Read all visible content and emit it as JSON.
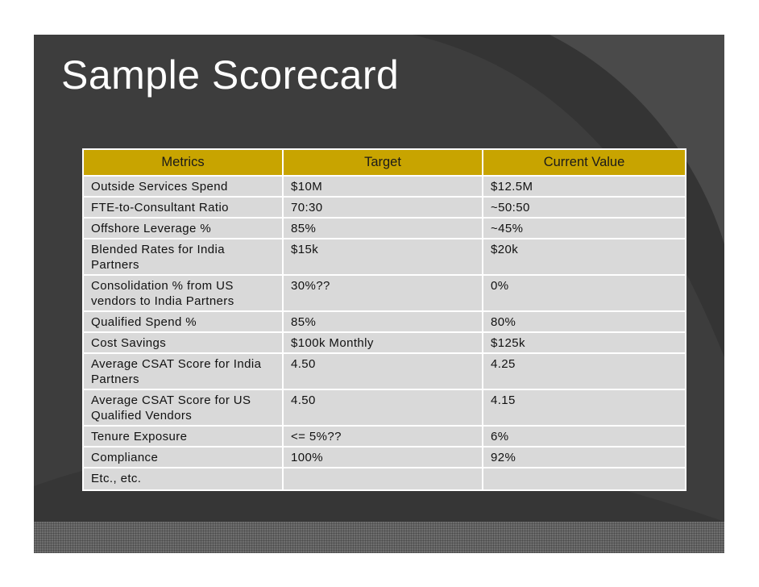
{
  "slide": {
    "title": "Sample Scorecard"
  },
  "table": {
    "headers": [
      "Metrics",
      "Target",
      "Current Value"
    ],
    "rows": [
      [
        "Outside Services Spend",
        "$10M",
        "$12.5M"
      ],
      [
        "FTE-to-Consultant Ratio",
        "70:30",
        "~50:50"
      ],
      [
        "Offshore Leverage %",
        "85%",
        "~45%"
      ],
      [
        "Blended Rates for India Partners",
        "$15k",
        "$20k"
      ],
      [
        "Consolidation % from US vendors to India Partners",
        "30%??",
        "0%"
      ],
      [
        "Qualified Spend %",
        "85%",
        "80%"
      ],
      [
        "Cost Savings",
        "$100k Monthly",
        "$125k"
      ],
      [
        "Average CSAT Score for India Partners",
        "4.50",
        "4.25"
      ],
      [
        "Average CSAT Score for US Qualified Vendors",
        "4.50",
        "4.15"
      ],
      [
        "Tenure Exposure",
        "<= 5%??",
        "6%"
      ],
      [
        "Compliance",
        "100%",
        "92%"
      ],
      [
        "Etc., etc.",
        "",
        ""
      ]
    ]
  },
  "colors": {
    "background": "#3d3d3d",
    "header": "#c8a400",
    "cell": "#d9d9d9"
  }
}
